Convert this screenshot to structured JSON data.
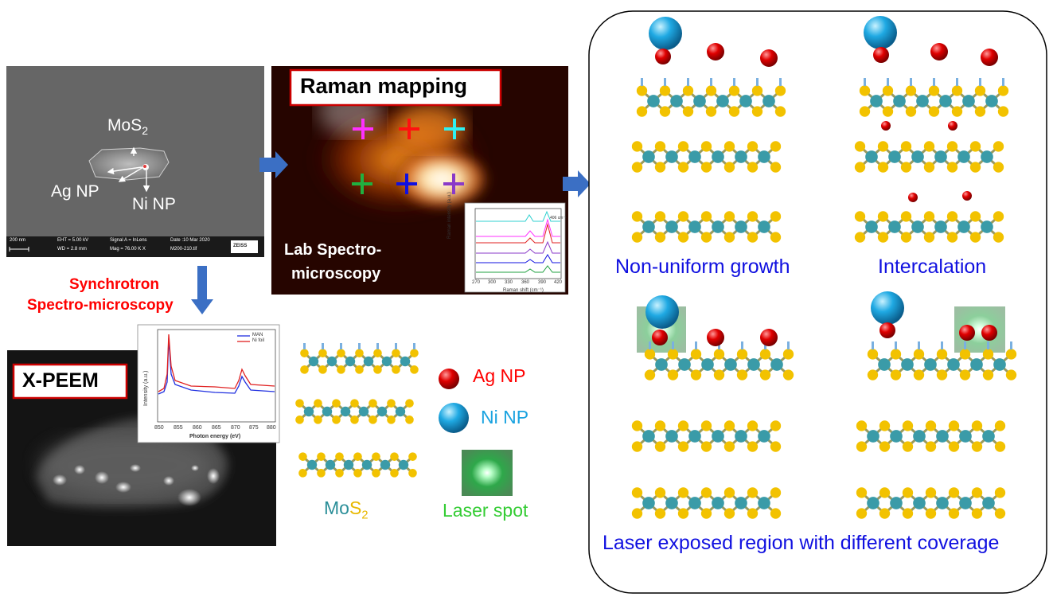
{
  "sem": {
    "mos2_label": "MoS",
    "mos2_sub": "2",
    "ag_np_label": "Ag NP",
    "ni_np_label": "Ni NP",
    "scale_bar": "200 nm",
    "footer_col1_l1": "EHT =  5.00 kV",
    "footer_col1_l2": "WD =  2.8 mm",
    "footer_col2_l1": "Signal A = InLens",
    "footer_col2_l2": "Mag =  76.00 K X",
    "footer_col3_l1": "Date :10 Mar 2020",
    "footer_col3_l2": "M200-210.tif",
    "brand": "ZEISS"
  },
  "raman": {
    "title": "Raman mapping",
    "subtitle_l1": "Lab  Spectro-",
    "subtitle_l2": "microscopy",
    "inset_ylabel": "Raman intensity (a.u.)",
    "inset_xlabel": "Raman shift (cm⁻¹)",
    "inset_peak_label": "406 cm⁻¹",
    "inset_ticks": [
      "270",
      "300",
      "330",
      "360",
      "390",
      "420"
    ]
  },
  "synchrotron": {
    "line1": "Synchrotron",
    "line2": "Spectro-microscopy"
  },
  "xpeem": {
    "title": "X-PEEM",
    "inset_ylabel": "Intensity (a.u.)",
    "inset_xlabel": "Photon energy (eV)",
    "legend_man": "MAN",
    "legend_ni": "Ni foil",
    "inset_ticks": [
      "850",
      "855",
      "860",
      "865",
      "870",
      "875",
      "880"
    ]
  },
  "legend": {
    "mos2_mo": "Mo",
    "mos2_s": "S",
    "mos2_sub": "2",
    "ag_np": "Ag NP",
    "ni_np": "Ni NP",
    "laser_spot": "Laser spot"
  },
  "panel": {
    "non_uniform": "Non-uniform growth",
    "intercalation": "Intercalation",
    "laser_exposed": "Laser exposed region with different coverage"
  },
  "colors": {
    "red_text": "#ff0000",
    "blue_text": "#1010e0",
    "ni_text": "#1aa3e0",
    "laser_text": "#33cc33",
    "arrow": "#3b6fc4",
    "mo": "#3a9ba8",
    "s": "#f2c200"
  }
}
